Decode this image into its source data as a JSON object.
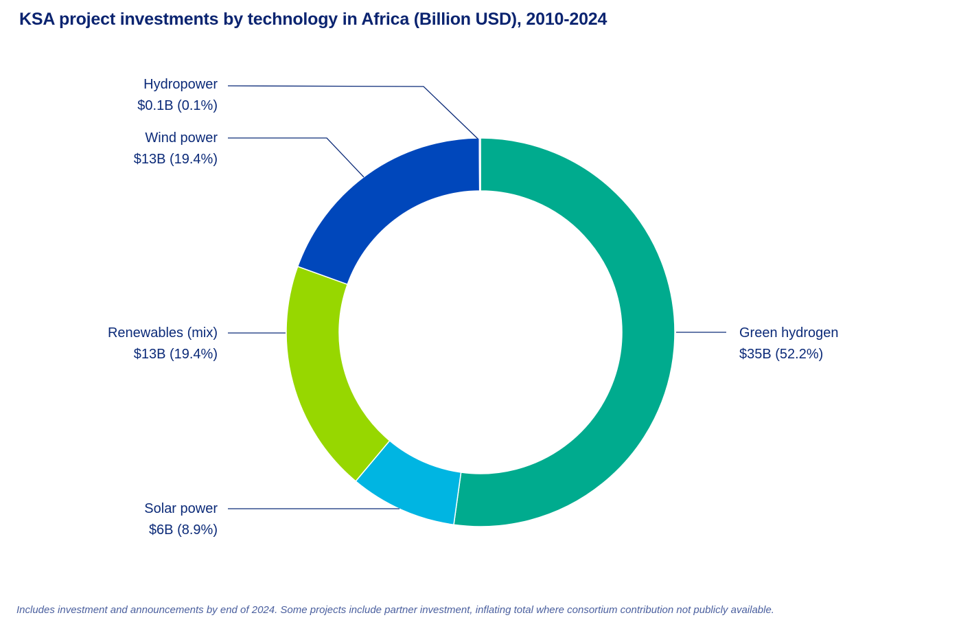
{
  "chart_data": {
    "type": "pie",
    "subtype": "donut",
    "title": "KSA project investments by technology in Africa (Billion USD), 2010-2024",
    "unit": "Billion USD",
    "slices": [
      {
        "name": "Green hydrogen",
        "value": 35,
        "percent": 52.2,
        "value_label": "$35B (52.2%)",
        "color": "#00ab8e",
        "label_side": "right"
      },
      {
        "name": "Solar power",
        "value": 6,
        "percent": 8.9,
        "value_label": "$6B (8.9%)",
        "color": "#00b5e2",
        "label_side": "left"
      },
      {
        "name": "Renewables (mix)",
        "value": 13,
        "percent": 19.4,
        "value_label": "$13B (19.4%)",
        "color": "#97d700",
        "label_side": "left"
      },
      {
        "name": "Wind power",
        "value": 13,
        "percent": 19.4,
        "value_label": "$13B (19.4%)",
        "color": "#0047bb",
        "label_side": "left"
      },
      {
        "name": "Hydropower",
        "value": 0.1,
        "percent": 0.1,
        "value_label": "$0.1B (0.1%)",
        "color": "#9dc3ee",
        "label_side": "left"
      }
    ],
    "start_angle": "12 o'clock",
    "direction": "clockwise",
    "legend": "none (direct labels)"
  },
  "footnote": "Includes investment and announcements by end of 2024. Some projects include partner investment, inflating total where consortium contribution not publicly available."
}
